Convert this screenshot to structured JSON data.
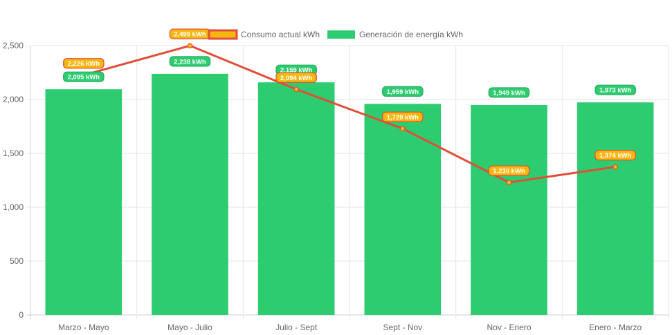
{
  "chart_data": {
    "type": "bar",
    "categories": [
      "Marzo - Mayo",
      "Mayo - Julio",
      "Julio - Sept",
      "Sept - Nov",
      "Nov - Enero",
      "Enero - Marzo"
    ],
    "ylim": [
      0,
      2500
    ],
    "yticks": [
      "0",
      "500",
      "1,000",
      "1,500",
      "2,000",
      "2,500"
    ],
    "grid": true,
    "legend_position": "top-center",
    "series": [
      {
        "name": "Consumo actual kWh",
        "type": "line",
        "values": [
          2226,
          2499,
          2094,
          1729,
          1230,
          1374
        ],
        "labels": [
          "2,226 kWh",
          "2,499 kWh",
          "2,094 kWh",
          "1,729 kWh",
          "1,230 kWh",
          "1,374 kWh"
        ],
        "color": "#e04e39",
        "label_color": "#f6b80f"
      },
      {
        "name": "Generación de energía kWh",
        "type": "bar",
        "values": [
          2095,
          2238,
          2159,
          1959,
          1949,
          1973
        ],
        "labels": [
          "2,095 kWh",
          "2,238 kWh",
          "2,159 kWh",
          "1,959 kWh",
          "1,949 kWh",
          "1,973 kWh"
        ],
        "color": "#2ecc71"
      }
    ]
  }
}
